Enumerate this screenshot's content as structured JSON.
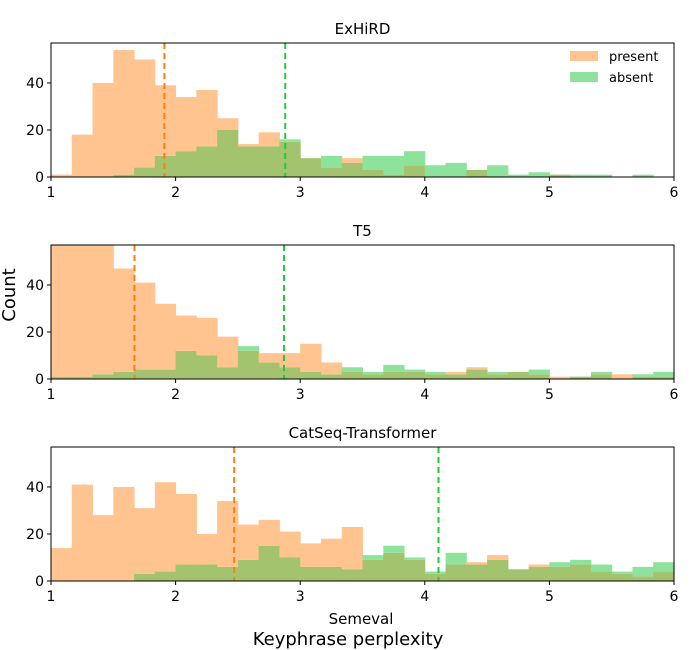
{
  "figure": {
    "ylabel": "Count",
    "xlabel_bottom": "Semeval",
    "suptitle": "Keyphrase perplexity",
    "colors": {
      "present": "#ffc48f",
      "absent": "#8ee39c",
      "overlap": "#a4c36f",
      "present_median": "#ff7f0e",
      "absent_median": "#22c93a"
    }
  },
  "legend": {
    "placement": "upper-right",
    "entries": [
      "present",
      "absent"
    ]
  },
  "chart_data": [
    {
      "type": "histogram",
      "title": "ExHiRD",
      "xlim": [
        1,
        6
      ],
      "ylim": [
        0,
        57
      ],
      "xticks": [
        "1",
        "2",
        "3",
        "4",
        "5",
        "6"
      ],
      "yticks": [
        "0",
        "20",
        "40"
      ],
      "bin_edges": [
        1.0,
        1.1667,
        1.3333,
        1.5,
        1.6667,
        1.8333,
        2.0,
        2.1667,
        2.3333,
        2.5,
        2.6667,
        2.8333,
        3.0,
        3.1667,
        3.3333,
        3.5,
        3.6667,
        3.8333,
        4.0,
        4.1667,
        4.3333,
        4.5,
        4.6667,
        4.8333,
        5.0,
        5.1667,
        5.3333,
        5.5,
        5.6667,
        5.8333,
        6.0
      ],
      "series": [
        {
          "name": "present",
          "values": [
            1,
            18,
            40,
            54,
            50,
            39,
            34,
            37,
            25,
            14,
            19,
            15,
            8,
            4,
            8,
            3,
            1,
            5,
            0,
            0,
            3,
            0,
            0,
            0,
            1,
            0,
            0,
            0,
            0,
            0
          ]
        },
        {
          "name": "absent",
          "values": [
            0,
            0,
            0,
            1,
            4,
            9,
            11,
            13,
            20,
            13,
            13,
            16,
            8,
            9,
            6,
            9,
            9,
            11,
            5,
            6,
            3,
            5,
            1,
            2,
            1,
            1,
            1,
            0,
            1,
            0
          ]
        }
      ],
      "medians": {
        "present": 1.91,
        "absent": 2.88
      }
    },
    {
      "type": "histogram",
      "title": "T5",
      "xlim": [
        1,
        6
      ],
      "ylim": [
        0,
        57
      ],
      "xticks": [
        "1",
        "2",
        "3",
        "4",
        "5",
        "6"
      ],
      "yticks": [
        "0",
        "20",
        "40"
      ],
      "bin_edges": [
        1.0,
        1.1667,
        1.3333,
        1.5,
        1.6667,
        1.8333,
        2.0,
        2.1667,
        2.3333,
        2.5,
        2.6667,
        2.8333,
        3.0,
        3.1667,
        3.3333,
        3.5,
        3.6667,
        3.8333,
        4.0,
        4.1667,
        4.3333,
        4.5,
        4.6667,
        4.8333,
        5.0,
        5.1667,
        5.3333,
        5.5,
        5.6667,
        5.8333,
        6.0
      ],
      "series": [
        {
          "name": "present",
          "values": [
            58,
            58,
            58,
            47,
            41,
            32,
            27,
            26,
            18,
            12,
            11,
            11,
            15,
            7,
            3,
            2,
            3,
            3,
            2,
            3,
            5,
            2,
            3,
            2,
            1,
            1,
            2,
            2,
            1,
            1
          ]
        },
        {
          "name": "absent",
          "values": [
            1,
            1,
            2,
            3,
            4,
            4,
            12,
            10,
            5,
            14,
            7,
            5,
            3,
            2,
            5,
            3,
            6,
            4,
            3,
            2,
            4,
            3,
            3,
            4,
            0,
            1,
            3,
            0,
            2,
            3
          ]
        }
      ],
      "medians": {
        "present": 1.67,
        "absent": 2.87
      }
    },
    {
      "type": "histogram",
      "title": "CatSeq-Transformer",
      "xlim": [
        1,
        6
      ],
      "ylim": [
        0,
        57
      ],
      "xticks": [
        "1",
        "2",
        "3",
        "4",
        "5",
        "6"
      ],
      "yticks": [
        "0",
        "20",
        "40"
      ],
      "bin_edges": [
        1.0,
        1.1667,
        1.3333,
        1.5,
        1.6667,
        1.8333,
        2.0,
        2.1667,
        2.3333,
        2.5,
        2.6667,
        2.8333,
        3.0,
        3.1667,
        3.3333,
        3.5,
        3.6667,
        3.8333,
        4.0,
        4.1667,
        4.3333,
        4.5,
        4.6667,
        4.8333,
        5.0,
        5.1667,
        5.3333,
        5.5,
        5.6667,
        5.8333,
        6.0
      ],
      "series": [
        {
          "name": "present",
          "values": [
            14,
            41,
            28,
            40,
            31,
            42,
            37,
            20,
            34,
            24,
            26,
            21,
            16,
            18,
            23,
            9,
            12,
            9,
            3,
            7,
            8,
            11,
            5,
            7,
            6,
            7,
            4,
            3,
            2,
            4
          ]
        },
        {
          "name": "absent",
          "values": [
            0,
            0,
            0,
            0,
            3,
            4,
            7,
            7,
            6,
            9,
            15,
            10,
            6,
            6,
            5,
            11,
            15,
            10,
            4,
            12,
            7,
            9,
            5,
            6,
            8,
            9,
            7,
            4,
            6,
            8
          ]
        }
      ],
      "medians": {
        "present": 2.47,
        "absent": 4.11
      }
    }
  ]
}
